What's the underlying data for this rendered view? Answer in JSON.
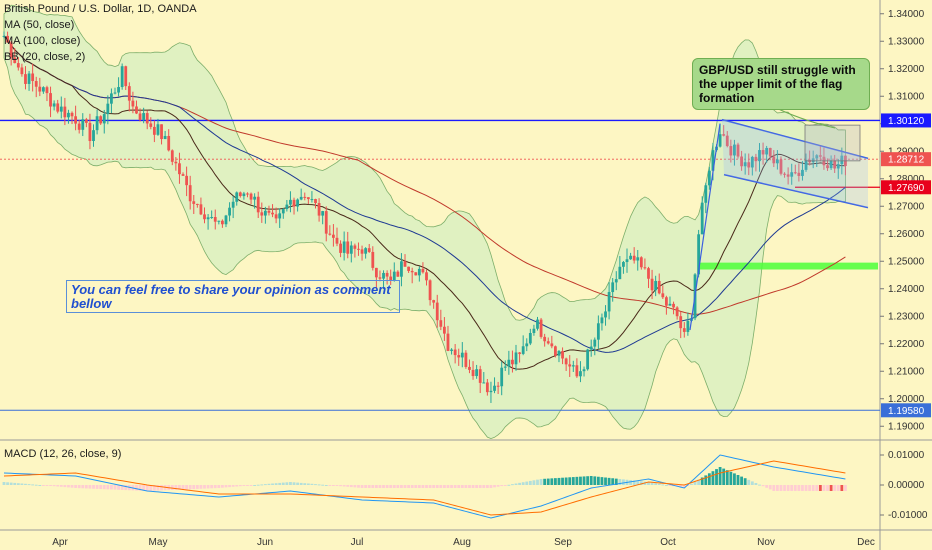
{
  "header": {
    "title": "British Pound / U.S. Dollar, 1D, OANDA",
    "indicators": [
      "MA (50, close)",
      "MA (100, close)",
      "BB (20, close, 2)"
    ],
    "macd_label": "MACD (12, 26, close, 9)"
  },
  "annotations": {
    "callout": "GBP/USD still struggle with the upper limit of the flag formation",
    "comment": "You can feel free to share your opinion as comment bellow"
  },
  "colors": {
    "background": "#fdf6c3",
    "up_candle": "#26a69a",
    "down_candle": "#ef5350",
    "bb_fill": "#c8ecc0",
    "ma50": "#4a2a1a",
    "ma100": "#1f3a93",
    "resistance": "#1a1aff",
    "callout": "#a6d98a",
    "support_zone": "#4cff3a"
  },
  "chart_data": {
    "type": "candlestick",
    "price_axis_ticks": [
      "1.34000",
      "1.33000",
      "1.32000",
      "1.31000",
      "1.30000",
      "1.29000",
      "1.28000",
      "1.27000",
      "1.26000",
      "1.25000",
      "1.24000",
      "1.23000",
      "1.22000",
      "1.21000",
      "1.20000",
      "1.19000"
    ],
    "time_axis_ticks": [
      "Apr",
      "May",
      "Jun",
      "Jul",
      "Aug",
      "Sep",
      "Oct",
      "Nov",
      "Dec"
    ],
    "macd_axis_ticks": [
      "0.01000",
      "0.00000",
      "-0.01000"
    ],
    "price_labels": [
      {
        "value": 1.3012,
        "text": "1.30120",
        "color": "#1a1aff"
      },
      {
        "value": 1.28712,
        "text": "1.28712",
        "color": "#ef5350"
      },
      {
        "value": 1.2769,
        "text": "1.27690",
        "color": "#e8001c"
      },
      {
        "value": 1.1958,
        "text": "1.19580",
        "color": "#3a6fd8"
      }
    ],
    "horizontal_lines": [
      1.3012,
      1.1958
    ],
    "support_zone": [
      1.247,
      1.2495
    ],
    "close_path": [
      [
        0,
        1.332
      ],
      [
        5,
        1.318
      ],
      [
        10,
        1.313
      ],
      [
        15,
        1.306
      ],
      [
        20,
        1.302
      ],
      [
        24,
        1.296
      ],
      [
        28,
        1.304
      ],
      [
        30,
        1.31
      ],
      [
        33,
        1.318
      ],
      [
        36,
        1.306
      ],
      [
        40,
        1.301
      ],
      [
        44,
        1.296
      ],
      [
        48,
        1.285
      ],
      [
        52,
        1.274
      ],
      [
        56,
        1.268
      ],
      [
        60,
        1.262
      ],
      [
        64,
        1.272
      ],
      [
        68,
        1.276
      ],
      [
        72,
        1.268
      ],
      [
        76,
        1.263
      ],
      [
        80,
        1.272
      ],
      [
        84,
        1.275
      ],
      [
        88,
        1.268
      ],
      [
        92,
        1.258
      ],
      [
        96,
        1.253
      ],
      [
        100,
        1.255
      ],
      [
        104,
        1.247
      ],
      [
        108,
        1.242
      ],
      [
        112,
        1.25
      ],
      [
        116,
        1.247
      ],
      [
        120,
        1.235
      ],
      [
        124,
        1.22
      ],
      [
        128,
        1.215
      ],
      [
        132,
        1.21
      ],
      [
        136,
        1.203
      ],
      [
        140,
        1.212
      ],
      [
        144,
        1.215
      ],
      [
        148,
        1.228
      ],
      [
        152,
        1.222
      ],
      [
        156,
        1.215
      ],
      [
        160,
        1.208
      ],
      [
        164,
        1.218
      ],
      [
        168,
        1.232
      ],
      [
        172,
        1.248
      ],
      [
        176,
        1.25
      ],
      [
        180,
        1.244
      ],
      [
        184,
        1.236
      ],
      [
        188,
        1.23
      ],
      [
        190,
        1.222
      ],
      [
        192,
        1.232
      ],
      [
        194,
        1.26
      ],
      [
        197,
        1.285
      ],
      [
        200,
        1.298
      ],
      [
        202,
        1.293
      ],
      [
        205,
        1.288
      ],
      [
        208,
        1.286
      ],
      [
        212,
        1.29
      ],
      [
        216,
        1.285
      ],
      [
        220,
        1.28
      ],
      [
        224,
        1.287
      ],
      [
        228,
        1.289
      ],
      [
        232,
        1.284
      ],
      [
        235,
        1.287
      ]
    ],
    "macd_line": [
      [
        0,
        0.004
      ],
      [
        20,
        0.003
      ],
      [
        40,
        -0.002
      ],
      [
        60,
        -0.004
      ],
      [
        80,
        -0.002
      ],
      [
        100,
        -0.005
      ],
      [
        120,
        -0.006
      ],
      [
        136,
        -0.011
      ],
      [
        150,
        -0.007
      ],
      [
        164,
        -0.001
      ],
      [
        180,
        0.002
      ],
      [
        190,
        -0.001
      ],
      [
        200,
        0.01
      ],
      [
        215,
        0.006
      ],
      [
        235,
        0.002
      ]
    ],
    "signal_line": [
      [
        0,
        0.003
      ],
      [
        20,
        0.004
      ],
      [
        40,
        0.0
      ],
      [
        60,
        -0.003
      ],
      [
        80,
        -0.003
      ],
      [
        100,
        -0.004
      ],
      [
        120,
        -0.005
      ],
      [
        136,
        -0.01
      ],
      [
        150,
        -0.009
      ],
      [
        164,
        -0.004
      ],
      [
        180,
        0.001
      ],
      [
        190,
        0.0
      ],
      [
        200,
        0.004
      ],
      [
        215,
        0.008
      ],
      [
        235,
        0.004
      ]
    ]
  }
}
